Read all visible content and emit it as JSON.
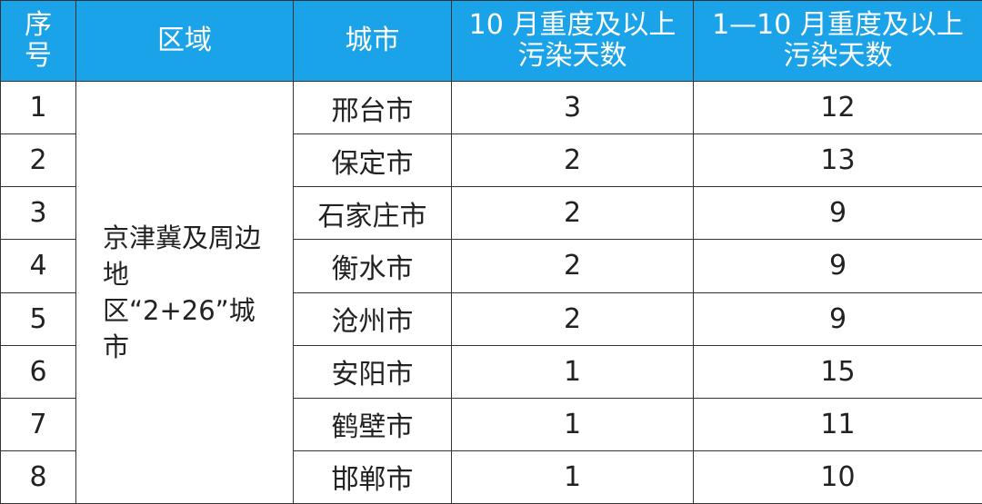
{
  "header": {
    "index": "序号",
    "region": "区域",
    "city": "城市",
    "oct_days": "10 月重度及以上污染天数",
    "ytd_days": "1—10 月重度及以上污染天数"
  },
  "header_color": "#1aa3e8",
  "region": "京津冀及周边地区“2+26”城市",
  "rows": [
    {
      "index": "1",
      "city": "邢台市",
      "oct": "3",
      "ytd": "12"
    },
    {
      "index": "2",
      "city": "保定市",
      "oct": "2",
      "ytd": "13"
    },
    {
      "index": "3",
      "city": "石家庄市",
      "oct": "2",
      "ytd": "9"
    },
    {
      "index": "4",
      "city": "衡水市",
      "oct": "2",
      "ytd": "9"
    },
    {
      "index": "5",
      "city": "沧州市",
      "oct": "2",
      "ytd": "9"
    },
    {
      "index": "6",
      "city": "安阳市",
      "oct": "1",
      "ytd": "15"
    },
    {
      "index": "7",
      "city": "鹤壁市",
      "oct": "1",
      "ytd": "11"
    },
    {
      "index": "8",
      "city": "邯郸市",
      "oct": "1",
      "ytd": "10"
    }
  ]
}
